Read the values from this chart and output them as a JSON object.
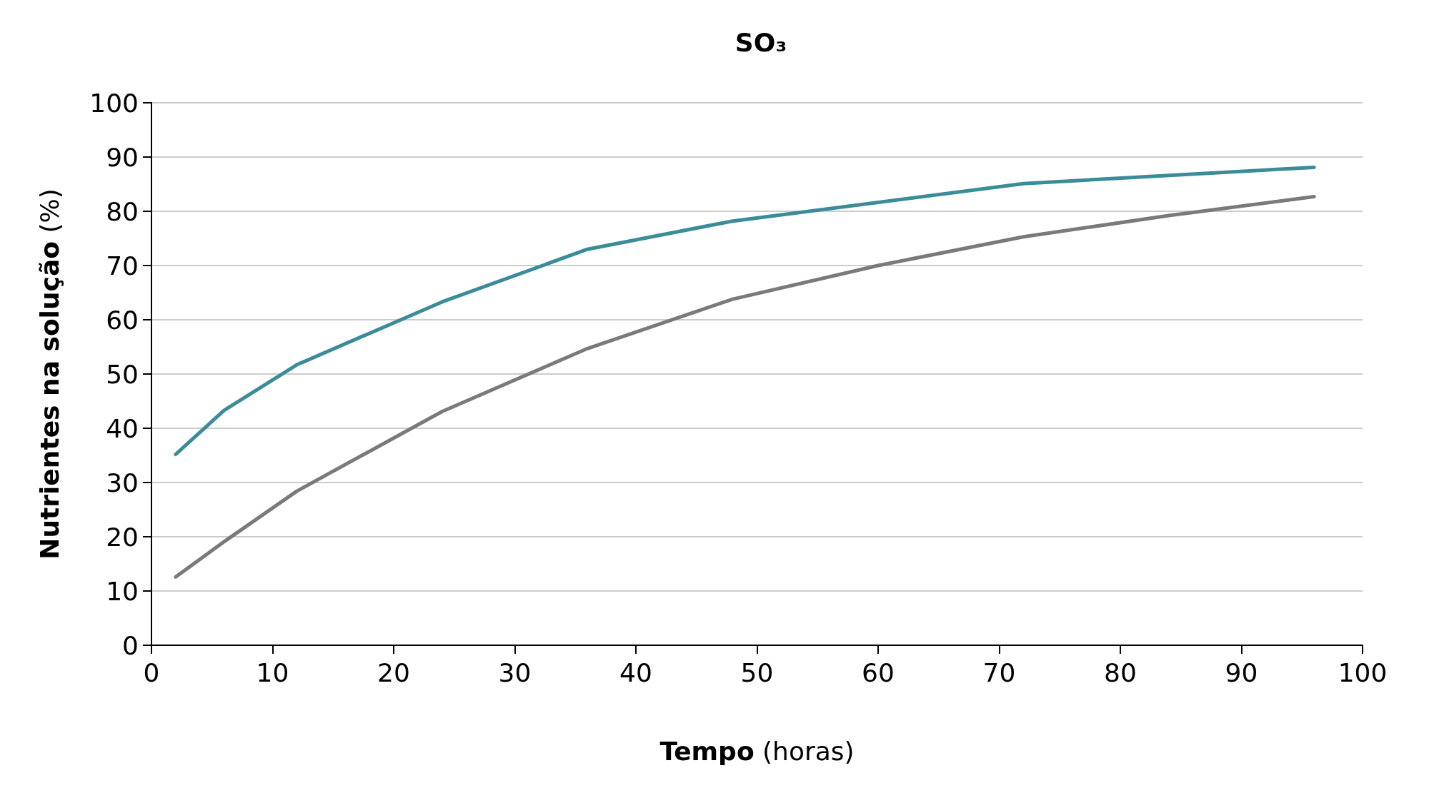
{
  "chart_data": {
    "type": "line",
    "title": "SO₃",
    "xlabel": "Tempo (horas)",
    "ylabel": "Nutrientes na solução (%)",
    "xlim": [
      0,
      100
    ],
    "xticks": [
      0,
      10,
      20,
      30,
      40,
      50,
      60,
      70,
      80,
      90,
      100
    ],
    "ylim": [
      0,
      100
    ],
    "yticks": [
      0,
      10,
      20,
      30,
      40,
      50,
      60,
      70,
      80,
      90,
      100
    ],
    "grid": "y",
    "marker": "none",
    "line_style": "solid",
    "series": [
      {
        "color": "#3a8c98",
        "x": [
          2,
          6,
          12,
          24,
          36,
          48,
          72,
          96
        ],
        "values": [
          35.2,
          43.3,
          51.7,
          63.3,
          73,
          78.2,
          85.1,
          88.1
        ]
      },
      {
        "color": "#7a7a7a",
        "x": [
          2,
          6,
          12,
          24,
          36,
          48,
          60,
          72,
          84,
          96
        ],
        "values": [
          12.6,
          19.1,
          28.4,
          43.1,
          54.7,
          63.8,
          70,
          75.3,
          79.2,
          82.7
        ]
      }
    ]
  }
}
